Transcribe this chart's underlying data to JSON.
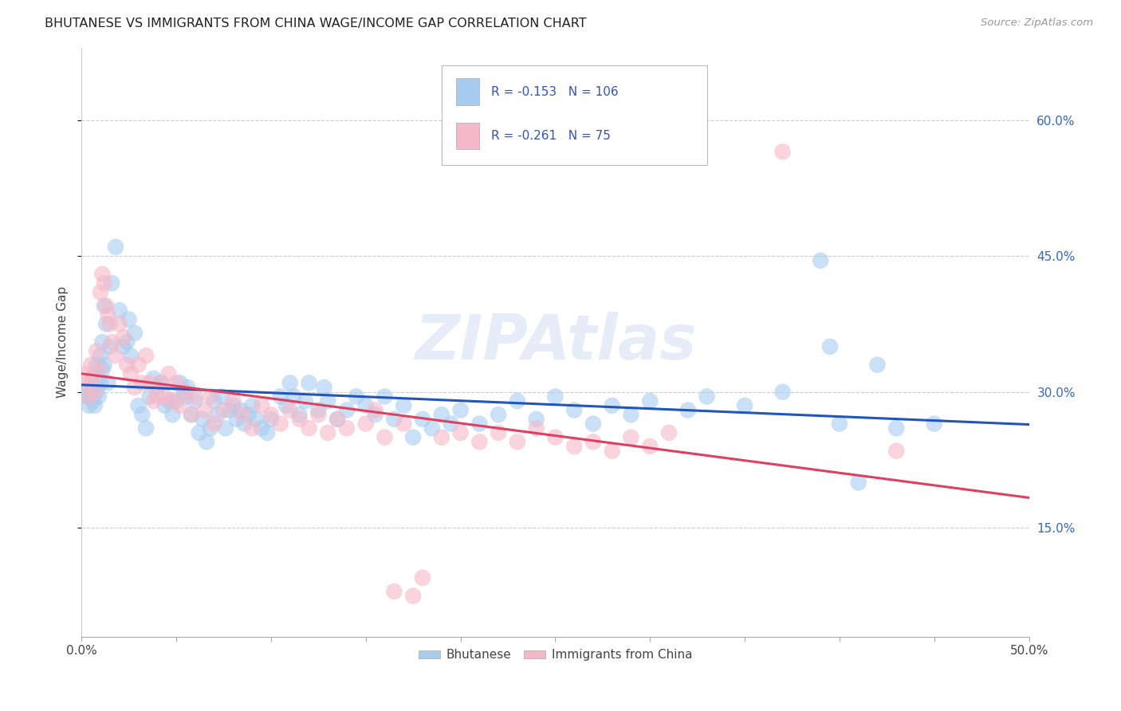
{
  "title": "BHUTANESE VS IMMIGRANTS FROM CHINA WAGE/INCOME GAP CORRELATION CHART",
  "source": "Source: ZipAtlas.com",
  "ylabel": "Wage/Income Gap",
  "ytick_values": [
    0.15,
    0.3,
    0.45,
    0.6
  ],
  "xlim": [
    0.0,
    0.5
  ],
  "ylim": [
    0.03,
    0.68
  ],
  "legend_label1": "Bhutanese",
  "legend_label2": "Immigrants from China",
  "R1": "-0.153",
  "N1": "106",
  "R2": "-0.261",
  "N2": "75",
  "watermark": "ZIPAtlas",
  "blue_color": "#A8CCF0",
  "pink_color": "#F5B8C8",
  "blue_line_color": "#2255BB",
  "pink_line_color": "#E04060",
  "blue_scatter": [
    [
      0.002,
      0.3
    ],
    [
      0.003,
      0.295
    ],
    [
      0.004,
      0.285
    ],
    [
      0.005,
      0.31
    ],
    [
      0.005,
      0.295
    ],
    [
      0.006,
      0.305
    ],
    [
      0.006,
      0.29
    ],
    [
      0.007,
      0.32
    ],
    [
      0.007,
      0.285
    ],
    [
      0.008,
      0.33
    ],
    [
      0.008,
      0.3
    ],
    [
      0.009,
      0.315
    ],
    [
      0.009,
      0.295
    ],
    [
      0.01,
      0.34
    ],
    [
      0.01,
      0.31
    ],
    [
      0.011,
      0.355
    ],
    [
      0.011,
      0.325
    ],
    [
      0.012,
      0.395
    ],
    [
      0.012,
      0.33
    ],
    [
      0.013,
      0.375
    ],
    [
      0.014,
      0.31
    ],
    [
      0.015,
      0.35
    ],
    [
      0.016,
      0.42
    ],
    [
      0.018,
      0.46
    ],
    [
      0.02,
      0.39
    ],
    [
      0.022,
      0.35
    ],
    [
      0.024,
      0.355
    ],
    [
      0.025,
      0.38
    ],
    [
      0.026,
      0.34
    ],
    [
      0.028,
      0.365
    ],
    [
      0.03,
      0.285
    ],
    [
      0.032,
      0.275
    ],
    [
      0.034,
      0.26
    ],
    [
      0.036,
      0.295
    ],
    [
      0.038,
      0.315
    ],
    [
      0.04,
      0.305
    ],
    [
      0.042,
      0.31
    ],
    [
      0.044,
      0.285
    ],
    [
      0.046,
      0.29
    ],
    [
      0.048,
      0.275
    ],
    [
      0.05,
      0.29
    ],
    [
      0.052,
      0.31
    ],
    [
      0.054,
      0.3
    ],
    [
      0.055,
      0.295
    ],
    [
      0.056,
      0.305
    ],
    [
      0.058,
      0.275
    ],
    [
      0.06,
      0.29
    ],
    [
      0.062,
      0.255
    ],
    [
      0.064,
      0.27
    ],
    [
      0.066,
      0.245
    ],
    [
      0.068,
      0.26
    ],
    [
      0.07,
      0.29
    ],
    [
      0.072,
      0.275
    ],
    [
      0.074,
      0.295
    ],
    [
      0.076,
      0.26
    ],
    [
      0.078,
      0.28
    ],
    [
      0.08,
      0.285
    ],
    [
      0.082,
      0.27
    ],
    [
      0.084,
      0.28
    ],
    [
      0.086,
      0.265
    ],
    [
      0.088,
      0.275
    ],
    [
      0.09,
      0.285
    ],
    [
      0.092,
      0.27
    ],
    [
      0.095,
      0.26
    ],
    [
      0.098,
      0.255
    ],
    [
      0.1,
      0.27
    ],
    [
      0.105,
      0.295
    ],
    [
      0.108,
      0.285
    ],
    [
      0.11,
      0.31
    ],
    [
      0.112,
      0.295
    ],
    [
      0.115,
      0.275
    ],
    [
      0.118,
      0.29
    ],
    [
      0.12,
      0.31
    ],
    [
      0.125,
      0.28
    ],
    [
      0.128,
      0.305
    ],
    [
      0.13,
      0.29
    ],
    [
      0.135,
      0.27
    ],
    [
      0.14,
      0.28
    ],
    [
      0.145,
      0.295
    ],
    [
      0.15,
      0.285
    ],
    [
      0.155,
      0.275
    ],
    [
      0.16,
      0.295
    ],
    [
      0.165,
      0.27
    ],
    [
      0.17,
      0.285
    ],
    [
      0.175,
      0.25
    ],
    [
      0.18,
      0.27
    ],
    [
      0.185,
      0.26
    ],
    [
      0.19,
      0.275
    ],
    [
      0.195,
      0.265
    ],
    [
      0.2,
      0.28
    ],
    [
      0.21,
      0.265
    ],
    [
      0.22,
      0.275
    ],
    [
      0.23,
      0.29
    ],
    [
      0.24,
      0.27
    ],
    [
      0.25,
      0.295
    ],
    [
      0.26,
      0.28
    ],
    [
      0.27,
      0.265
    ],
    [
      0.28,
      0.285
    ],
    [
      0.29,
      0.275
    ],
    [
      0.3,
      0.29
    ],
    [
      0.32,
      0.28
    ],
    [
      0.33,
      0.295
    ],
    [
      0.35,
      0.285
    ],
    [
      0.37,
      0.3
    ],
    [
      0.39,
      0.445
    ],
    [
      0.395,
      0.35
    ],
    [
      0.4,
      0.265
    ],
    [
      0.41,
      0.2
    ],
    [
      0.42,
      0.33
    ],
    [
      0.43,
      0.26
    ],
    [
      0.45,
      0.265
    ]
  ],
  "pink_scatter": [
    [
      0.002,
      0.32
    ],
    [
      0.003,
      0.31
    ],
    [
      0.004,
      0.295
    ],
    [
      0.005,
      0.33
    ],
    [
      0.006,
      0.315
    ],
    [
      0.007,
      0.3
    ],
    [
      0.008,
      0.345
    ],
    [
      0.009,
      0.325
    ],
    [
      0.01,
      0.41
    ],
    [
      0.011,
      0.43
    ],
    [
      0.012,
      0.42
    ],
    [
      0.013,
      0.395
    ],
    [
      0.014,
      0.385
    ],
    [
      0.015,
      0.375
    ],
    [
      0.016,
      0.355
    ],
    [
      0.018,
      0.34
    ],
    [
      0.02,
      0.375
    ],
    [
      0.022,
      0.36
    ],
    [
      0.024,
      0.33
    ],
    [
      0.026,
      0.32
    ],
    [
      0.028,
      0.305
    ],
    [
      0.03,
      0.33
    ],
    [
      0.032,
      0.31
    ],
    [
      0.034,
      0.34
    ],
    [
      0.036,
      0.31
    ],
    [
      0.038,
      0.29
    ],
    [
      0.04,
      0.295
    ],
    [
      0.042,
      0.31
    ],
    [
      0.044,
      0.295
    ],
    [
      0.046,
      0.32
    ],
    [
      0.048,
      0.29
    ],
    [
      0.05,
      0.31
    ],
    [
      0.052,
      0.285
    ],
    [
      0.055,
      0.3
    ],
    [
      0.058,
      0.275
    ],
    [
      0.06,
      0.295
    ],
    [
      0.065,
      0.28
    ],
    [
      0.068,
      0.295
    ],
    [
      0.07,
      0.265
    ],
    [
      0.075,
      0.28
    ],
    [
      0.08,
      0.29
    ],
    [
      0.085,
      0.275
    ],
    [
      0.09,
      0.26
    ],
    [
      0.095,
      0.285
    ],
    [
      0.1,
      0.275
    ],
    [
      0.105,
      0.265
    ],
    [
      0.11,
      0.28
    ],
    [
      0.115,
      0.27
    ],
    [
      0.12,
      0.26
    ],
    [
      0.125,
      0.275
    ],
    [
      0.13,
      0.255
    ],
    [
      0.135,
      0.27
    ],
    [
      0.14,
      0.26
    ],
    [
      0.15,
      0.265
    ],
    [
      0.155,
      0.28
    ],
    [
      0.16,
      0.25
    ],
    [
      0.165,
      0.08
    ],
    [
      0.17,
      0.265
    ],
    [
      0.175,
      0.075
    ],
    [
      0.18,
      0.095
    ],
    [
      0.19,
      0.25
    ],
    [
      0.2,
      0.255
    ],
    [
      0.21,
      0.245
    ],
    [
      0.22,
      0.255
    ],
    [
      0.23,
      0.245
    ],
    [
      0.24,
      0.26
    ],
    [
      0.25,
      0.25
    ],
    [
      0.26,
      0.24
    ],
    [
      0.27,
      0.245
    ],
    [
      0.28,
      0.235
    ],
    [
      0.29,
      0.25
    ],
    [
      0.3,
      0.24
    ],
    [
      0.31,
      0.255
    ],
    [
      0.37,
      0.565
    ],
    [
      0.43,
      0.235
    ]
  ]
}
